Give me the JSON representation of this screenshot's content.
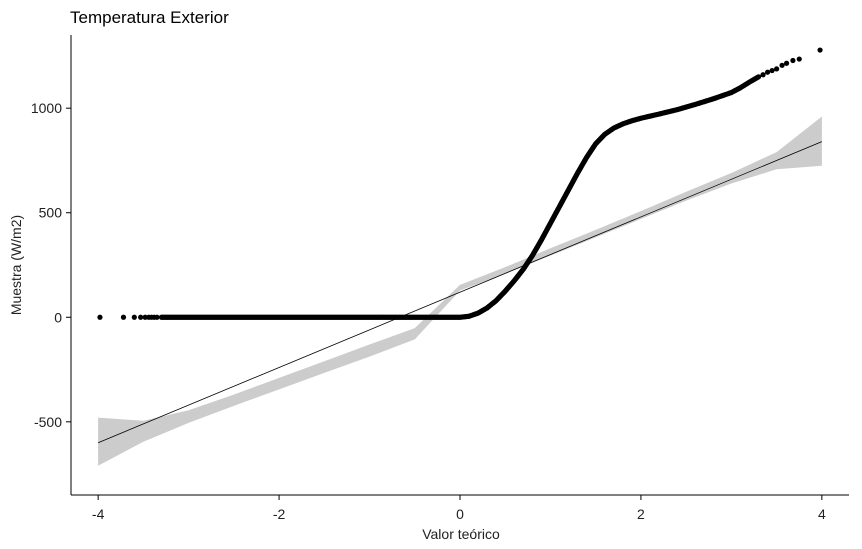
{
  "chart_data": {
    "type": "scatter",
    "subtype": "qq-plot",
    "title": "Temperatura Exterior",
    "xlabel": "Valor teórico",
    "ylabel": "Muestra (W/m2)",
    "xlim": [
      -4.3,
      4.3
    ],
    "ylim": [
      -850,
      1350
    ],
    "x_ticks": [
      -4,
      -2,
      0,
      2,
      4
    ],
    "x_tick_labels": [
      "-4",
      "-2",
      "0",
      "2",
      "4"
    ],
    "y_ticks": [
      -500,
      0,
      500,
      1000
    ],
    "y_tick_labels": [
      "-500",
      "0",
      "500",
      "1000"
    ],
    "grid": false,
    "legend": "none",
    "colors": {
      "points": "#000000",
      "line": "#000000",
      "band": "#cccccc"
    },
    "sample_curve": [
      [
        -3.3,
        0
      ],
      [
        -3.0,
        0
      ],
      [
        -2.5,
        0
      ],
      [
        -2.0,
        0
      ],
      [
        -1.5,
        0
      ],
      [
        -1.0,
        0
      ],
      [
        -0.5,
        0
      ],
      [
        0.0,
        0
      ],
      [
        0.1,
        5
      ],
      [
        0.2,
        20
      ],
      [
        0.3,
        45
      ],
      [
        0.4,
        80
      ],
      [
        0.5,
        125
      ],
      [
        0.6,
        175
      ],
      [
        0.7,
        230
      ],
      [
        0.8,
        295
      ],
      [
        0.9,
        370
      ],
      [
        1.0,
        450
      ],
      [
        1.1,
        530
      ],
      [
        1.2,
        610
      ],
      [
        1.3,
        690
      ],
      [
        1.4,
        765
      ],
      [
        1.5,
        830
      ],
      [
        1.6,
        875
      ],
      [
        1.7,
        905
      ],
      [
        1.8,
        925
      ],
      [
        1.9,
        940
      ],
      [
        2.0,
        952
      ],
      [
        2.2,
        972
      ],
      [
        2.4,
        993
      ],
      [
        2.6,
        1018
      ],
      [
        2.8,
        1045
      ],
      [
        3.0,
        1075
      ],
      [
        3.1,
        1098
      ],
      [
        3.2,
        1125
      ],
      [
        3.3,
        1150
      ]
    ],
    "tail_points": [
      [
        -3.98,
        0
      ],
      [
        -3.72,
        0
      ],
      [
        -3.6,
        0
      ],
      [
        -3.53,
        0
      ],
      [
        -3.48,
        0
      ],
      [
        -3.44,
        0
      ],
      [
        -3.41,
        0
      ],
      [
        -3.38,
        0
      ],
      [
        -3.35,
        0
      ],
      [
        3.35,
        1160
      ],
      [
        3.4,
        1172
      ],
      [
        3.45,
        1180
      ],
      [
        3.5,
        1188
      ],
      [
        3.56,
        1205
      ],
      [
        3.61,
        1215
      ],
      [
        3.68,
        1228
      ],
      [
        3.75,
        1235
      ],
      [
        3.98,
        1278
      ]
    ],
    "reference_line": {
      "x": [
        -4,
        4
      ],
      "y": [
        -600,
        840
      ]
    },
    "confidence_band": {
      "x": [
        -4,
        -3.5,
        -3,
        -2.5,
        -2,
        -1.5,
        -1,
        -0.5,
        0,
        0.5,
        1,
        1.5,
        2,
        2.5,
        3,
        3.5,
        4
      ],
      "lower": [
        -710,
        -595,
        -505,
        -424,
        -345,
        -266,
        -188,
        -106,
        128,
        208,
        295,
        382,
        470,
        558,
        640,
        708,
        725
      ],
      "upper": [
        -480,
        -495,
        -445,
        -370,
        -290,
        -210,
        -130,
        -52,
        155,
        240,
        330,
        418,
        508,
        600,
        690,
        790,
        960
      ]
    }
  }
}
